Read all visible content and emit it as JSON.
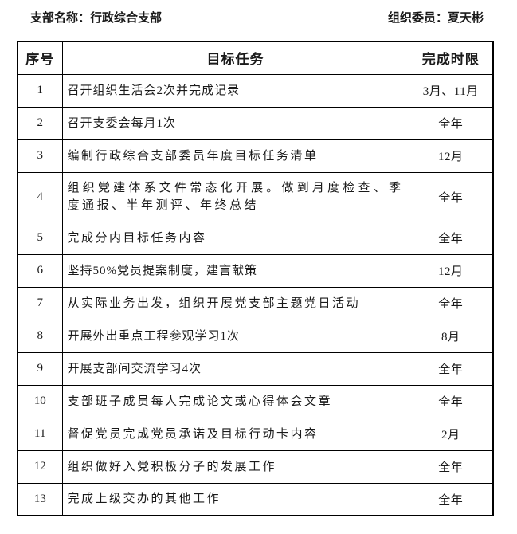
{
  "header": {
    "branch": {
      "label": "支部名称：",
      "value": "行政综合支部"
    },
    "committee": {
      "label": "组织委员：",
      "value": "夏天彬"
    }
  },
  "table": {
    "headers": [
      "序号",
      "目标任务",
      "完成时限"
    ],
    "rows": [
      {
        "no": "1",
        "task": "召开组织生活会2次并完成记录",
        "deadline": "3月、11月"
      },
      {
        "no": "2",
        "task": "召开支委会每月1次",
        "deadline": "全年"
      },
      {
        "no": "3",
        "task": "编制行政综合支部委员年度目标任务清单",
        "deadline": "12月"
      },
      {
        "no": "4",
        "task": "组织党建体系文件常态化开展。做到月度检查、季度通报、半年测评、年终总结",
        "deadline": "全年"
      },
      {
        "no": "5",
        "task": "完成分内目标任务内容",
        "deadline": "全年"
      },
      {
        "no": "6",
        "task": "坚持50%党员提案制度，建言献策",
        "deadline": "12月"
      },
      {
        "no": "7",
        "task": "从实际业务出发，组织开展党支部主题党日活动",
        "deadline": "全年"
      },
      {
        "no": "8",
        "task": "开展外出重点工程参观学习1次",
        "deadline": "8月"
      },
      {
        "no": "9",
        "task": "开展支部间交流学习4次",
        "deadline": "全年"
      },
      {
        "no": "10",
        "task": "支部班子成员每人完成论文或心得体会文章",
        "deadline": "全年"
      },
      {
        "no": "11",
        "task": "督促党员完成党员承诺及目标行动卡内容",
        "deadline": "2月"
      },
      {
        "no": "12",
        "task": "组织做好入党积极分子的发展工作",
        "deadline": "全年"
      },
      {
        "no": "13",
        "task": "完成上级交办的其他工作",
        "deadline": "全年"
      }
    ]
  },
  "colors": {
    "text": "#1a1a1a",
    "border": "#000000",
    "background": "#ffffff"
  }
}
